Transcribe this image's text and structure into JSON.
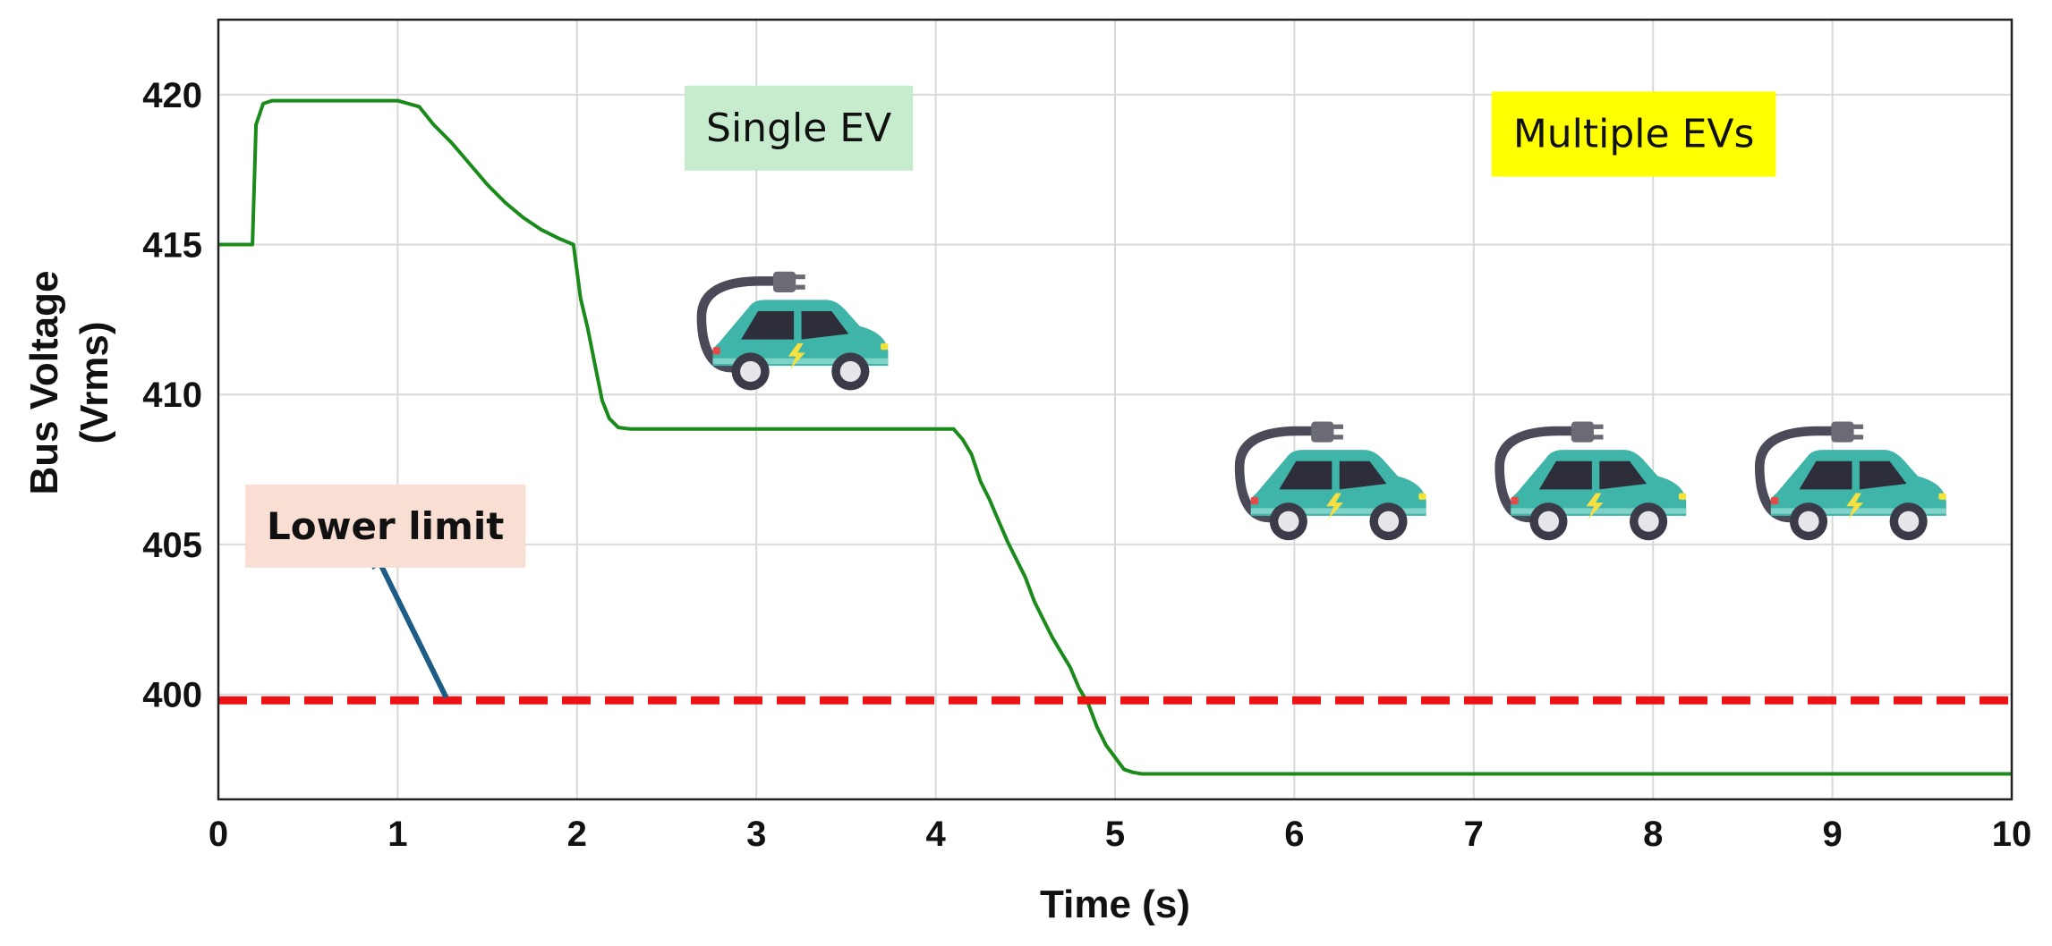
{
  "chart_data": {
    "type": "line",
    "xlabel": "Time (s)",
    "ylabel_lines": [
      "Bus Voltage",
      "(Vrms)"
    ],
    "xlim": [
      0,
      10
    ],
    "ylim": [
      396.5,
      422.5
    ],
    "xticks": [
      0,
      1,
      2,
      3,
      4,
      5,
      6,
      7,
      8,
      9,
      10
    ],
    "yticks": [
      400,
      405,
      410,
      415,
      420
    ],
    "grid": true,
    "series": [
      {
        "color": "#1a8a1a",
        "style": "solid",
        "x": [
          0,
          0.19,
          0.21,
          0.25,
          0.3,
          0.6,
          1.0,
          1.12,
          1.2,
          1.3,
          1.4,
          1.5,
          1.6,
          1.7,
          1.8,
          1.9,
          1.98,
          2.02,
          2.06,
          2.1,
          2.14,
          2.18,
          2.23,
          2.3,
          3.0,
          4.1,
          4.15,
          4.2,
          4.25,
          4.3,
          4.35,
          4.4,
          4.45,
          4.5,
          4.55,
          4.6,
          4.65,
          4.7,
          4.75,
          4.8,
          4.85,
          4.9,
          4.95,
          5.0,
          5.05,
          5.1,
          5.15,
          5.2,
          6.0,
          8.0,
          10.0
        ],
        "y": [
          415.0,
          415.0,
          419.0,
          419.7,
          419.8,
          419.8,
          419.8,
          419.6,
          419.0,
          418.4,
          417.7,
          417.0,
          416.4,
          415.9,
          415.5,
          415.2,
          415.0,
          413.2,
          412.2,
          411.0,
          409.8,
          409.2,
          408.9,
          408.85,
          408.85,
          408.85,
          408.5,
          408.0,
          407.1,
          406.5,
          405.8,
          405.1,
          404.5,
          403.9,
          403.1,
          402.5,
          401.9,
          401.4,
          400.9,
          400.2,
          399.7,
          398.9,
          398.3,
          397.9,
          397.5,
          397.4,
          397.35,
          397.35,
          397.35,
          397.35,
          397.35
        ]
      },
      {
        "color": "#ee1111",
        "style": "dashed",
        "x": [
          0,
          10
        ],
        "y": [
          399.8,
          399.8
        ]
      }
    ],
    "annotations": [
      {
        "text": "Single EV",
        "bg": "#c6eccd",
        "x": 2.6,
        "y": 420.3
      },
      {
        "text": "Multiple EVs",
        "bg": "#ffff00",
        "x": 7.1,
        "y": 420.1
      },
      {
        "text": "Lower limit",
        "bg": "#f9dfd3",
        "x": 0.15,
        "y": 407.0
      }
    ],
    "arrow": {
      "from": [
        1.27,
        399.9
      ],
      "to": [
        0.85,
        405.0
      ],
      "color": "#1d5d85"
    },
    "icons": [
      {
        "name": "ev-charging-car-icon",
        "x": 2.65,
        "y": 414.6
      },
      {
        "name": "ev-charging-car-icon",
        "x": 5.65,
        "y": 409.6
      },
      {
        "name": "ev-charging-car-icon",
        "x": 7.1,
        "y": 409.6
      },
      {
        "name": "ev-charging-car-icon",
        "x": 8.55,
        "y": 409.6
      }
    ]
  }
}
